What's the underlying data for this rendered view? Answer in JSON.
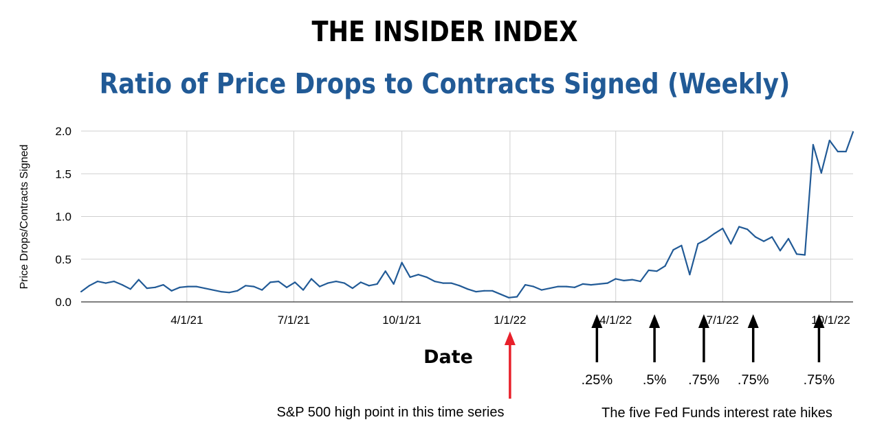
{
  "page": {
    "title": "THE INSIDER INDEX",
    "subtitle": "Ratio of Price Drops to Contracts Signed (Weekly)"
  },
  "chart_data": {
    "type": "line",
    "title": "THE INSIDER INDEX",
    "subtitle": "Ratio of Price Drops to Contracts Signed (Weekly)",
    "xlabel": "Date",
    "ylabel": "Price Drops/Contracts Signed",
    "ylim": [
      0,
      2
    ],
    "xlim": [
      "2021-01-01",
      "2022-10-20"
    ],
    "y_ticks": [
      "0.0",
      "0.5",
      "1.0",
      "1.5",
      "2.0"
    ],
    "x_ticks": [
      {
        "label": "4/1/21",
        "date": "2021-04-01"
      },
      {
        "label": "7/1/21",
        "date": "2021-07-01"
      },
      {
        "label": "10/1/21",
        "date": "2021-10-01"
      },
      {
        "label": "1/1/22",
        "date": "2022-01-01"
      },
      {
        "label": "4/1/22",
        "date": "2022-04-01"
      },
      {
        "label": "7/1/22",
        "date": "2022-07-01"
      },
      {
        "label": "10/1/22",
        "date": "2022-10-01"
      }
    ],
    "grid": true,
    "line_color": "#215a96",
    "series": [
      {
        "name": "",
        "x": [
          "2021-01-01",
          "2021-01-08",
          "2021-01-15",
          "2021-01-22",
          "2021-01-29",
          "2021-02-05",
          "2021-02-12",
          "2021-02-19",
          "2021-02-26",
          "2021-03-05",
          "2021-03-12",
          "2021-03-19",
          "2021-03-26",
          "2021-04-02",
          "2021-04-09",
          "2021-04-16",
          "2021-04-23",
          "2021-04-30",
          "2021-05-07",
          "2021-05-14",
          "2021-05-21",
          "2021-05-28",
          "2021-06-04",
          "2021-06-11",
          "2021-06-18",
          "2021-06-25",
          "2021-07-02",
          "2021-07-09",
          "2021-07-16",
          "2021-07-23",
          "2021-07-30",
          "2021-08-06",
          "2021-08-13",
          "2021-08-20",
          "2021-08-27",
          "2021-09-03",
          "2021-09-10",
          "2021-09-17",
          "2021-09-24",
          "2021-10-01",
          "2021-10-08",
          "2021-10-15",
          "2021-10-22",
          "2021-10-29",
          "2021-11-05",
          "2021-11-12",
          "2021-11-19",
          "2021-11-26",
          "2021-12-03",
          "2021-12-10",
          "2021-12-17",
          "2021-12-24",
          "2021-12-31",
          "2022-01-07",
          "2022-01-14",
          "2022-01-21",
          "2022-01-28",
          "2022-02-04",
          "2022-02-11",
          "2022-02-18",
          "2022-02-25",
          "2022-03-04",
          "2022-03-11",
          "2022-03-18",
          "2022-03-25",
          "2022-04-01",
          "2022-04-08",
          "2022-04-15",
          "2022-04-22",
          "2022-04-29",
          "2022-05-06",
          "2022-05-13",
          "2022-05-20",
          "2022-05-27",
          "2022-06-03",
          "2022-06-10",
          "2022-06-17",
          "2022-06-24",
          "2022-07-01",
          "2022-07-08",
          "2022-07-15",
          "2022-07-22",
          "2022-07-29",
          "2022-08-05",
          "2022-08-12",
          "2022-08-19",
          "2022-08-26",
          "2022-09-02",
          "2022-09-09",
          "2022-09-16",
          "2022-09-23",
          "2022-09-30",
          "2022-10-07",
          "2022-10-14",
          "2022-10-20"
        ],
        "y": [
          0.12,
          0.19,
          0.24,
          0.22,
          0.24,
          0.2,
          0.15,
          0.26,
          0.16,
          0.17,
          0.2,
          0.13,
          0.17,
          0.18,
          0.18,
          0.16,
          0.14,
          0.12,
          0.11,
          0.13,
          0.19,
          0.18,
          0.14,
          0.23,
          0.24,
          0.17,
          0.23,
          0.14,
          0.27,
          0.18,
          0.22,
          0.24,
          0.22,
          0.16,
          0.23,
          0.19,
          0.21,
          0.36,
          0.21,
          0.46,
          0.29,
          0.32,
          0.29,
          0.24,
          0.22,
          0.22,
          0.19,
          0.15,
          0.12,
          0.13,
          0.13,
          0.09,
          0.05,
          0.06,
          0.2,
          0.18,
          0.14,
          0.16,
          0.18,
          0.18,
          0.17,
          0.21,
          0.2,
          0.21,
          0.22,
          0.27,
          0.25,
          0.26,
          0.24,
          0.37,
          0.36,
          0.42,
          0.61,
          0.66,
          0.32,
          0.68,
          0.73,
          0.8,
          0.86,
          0.68,
          0.88,
          0.85,
          0.76,
          0.71,
          0.76,
          0.6,
          0.74,
          0.56,
          0.55,
          1.84,
          1.51,
          1.89,
          1.76,
          1.76,
          1.99
        ]
      }
    ],
    "annotations": [
      {
        "date": "2022-01-01",
        "color": "#e8202a",
        "text": "S&P 500 high point in this time series"
      },
      {
        "date": "2022-03-16",
        "color": "#000000",
        "text": ".25%"
      },
      {
        "date": "2022-05-04",
        "color": "#000000",
        "text": ".5%"
      },
      {
        "date": "2022-06-15",
        "color": "#000000",
        "text": ".75%"
      },
      {
        "date": "2022-07-27",
        "color": "#000000",
        "text": ".75%"
      },
      {
        "date": "2022-09-21",
        "color": "#000000",
        "text": ".75%"
      }
    ],
    "annotation_group_label": "The five Fed Funds interest rate hikes"
  }
}
